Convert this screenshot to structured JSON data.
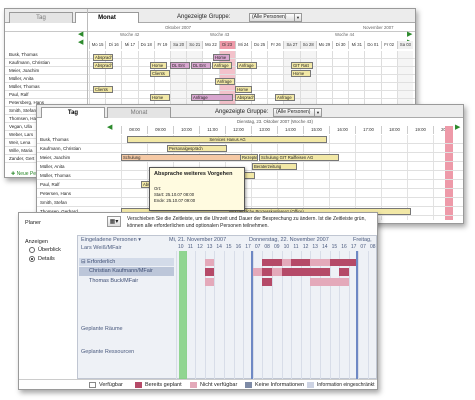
{
  "p1": {
    "tab_tag": "Tag",
    "tab_monat": "Monat",
    "group_label": "Angezeigte Gruppe:",
    "group_value": "(Alle Personen)",
    "date_left": "Oktober 2007",
    "date_right": "November 2007",
    "weeks": [
      "Woche 42",
      "Woche 43",
      "Woche 44"
    ],
    "days": [
      "Mo 15",
      "Di 16",
      "Mi 17",
      "Do 18",
      "Fr 19",
      "Sa 20",
      "So 21",
      "Mo 22",
      "Di 23",
      "Mi 24",
      "Do 25",
      "Fr 26",
      "Sa 27",
      "So 28",
      "Mo 29",
      "Di 30",
      "Mi 31",
      "Do 01",
      "Fr 02",
      "Sa 03"
    ],
    "people": [
      "Busk, Thomas",
      "Kaufmann, Christian",
      "Meier, Joachim",
      "Müller, Anita",
      "Müller, Thomas",
      "Paul, Ralf",
      "Petersberg, Hans",
      "Smith, Stefan",
      "Thomsen, Harald",
      "Vegan, Ulla",
      "Weber, Lars",
      "Weir, Lena",
      "Wille, Maria",
      "Zander, Gert"
    ],
    "events": [
      "Absprache",
      "Home",
      "Absprache",
      "DL Ent",
      "DL Ent",
      "Anfrage",
      "Home",
      "Anfrage",
      "GIT Ratt",
      "Clients",
      "Home",
      "Anfrage",
      "Clients",
      "Home",
      "Home",
      "Anfrage",
      "Absprache",
      "Anfrage"
    ],
    "new_person": "Neue Person"
  },
  "p2": {
    "tab_tag": "Tag",
    "tab_monat": "Monat",
    "group_label": "Angezeigte Gruppe:",
    "group_value": "(Alle Personen)",
    "date": "Dienstag, 23. Oktober 2007 (Woche 43)",
    "hours": [
      "08:00",
      "09:00",
      "10:00",
      "11:00",
      "12:00",
      "13:00",
      "14:00",
      "15:00",
      "16:00",
      "17:00",
      "18:00",
      "19:00",
      "20:00"
    ],
    "people": [
      "Busk, Thomas",
      "Kaufmann, Christian",
      "Meier, Joachim",
      "Müller, Anita",
      "Müller, Thomas",
      "Paul, Ralf",
      "Petersen, Hans",
      "Smith, Stefan",
      "Thomsen, Gerhard"
    ],
    "events": [
      "Services Hanus AG",
      "Personalgespräch",
      "Schulung",
      "Rezepte",
      "Schulung GIT Raiffeisen AG",
      "Beraterzeitung",
      "Kaufmann",
      "Absprache",
      "Absprache",
      "Wöchentliche Prozesskonferenz (Office)"
    ],
    "popup": {
      "title": "Absprache weiteres Vorgehen",
      "ort": "Ort:",
      "start": "Start: 25.10.07 08:00",
      "ende": "Ende: 25.10.07 09:00"
    }
  },
  "p3": {
    "planer": "Planer",
    "info": "Verschieben Sie die Zeitleiste, um die Uhrzeit und Dauer der Besprechung zu ändern. Ist die Zeitleiste grün, können alle erforderlichen und optionalen Personen teilnehmen.",
    "anzeigen": "Anzeigen",
    "ueberblick": "Überblick",
    "details": "Details",
    "col_header": "Eingeladene Personen",
    "person0": "Lars Weiß/MFair",
    "day1": "Mi, 21. November 2007",
    "day2": "Donnerstag, 22. November 2007",
    "day3": "Freitag,",
    "hours": [
      "10",
      "11",
      "12",
      "13",
      "14",
      "15",
      "16",
      "17",
      "07",
      "08",
      "09",
      "10",
      "11",
      "12",
      "13",
      "14",
      "15",
      "16",
      "17",
      "07",
      "08"
    ],
    "required": "Erforderlich",
    "req1": "Christian Kaufmann/MFair",
    "req2": "Thomas Buck/MFair",
    "rooms": "Geplante Räume",
    "resources": "Geplante Ressourcen",
    "legend": [
      "Verfügbar",
      "Bereits geplant",
      "Nicht verfügbar",
      "Keine Informationen",
      "Information eingeschränkt"
    ],
    "colors": {
      "available": "#ffffff",
      "planned": "#b54a68",
      "unavailable": "#e4a9ba",
      "noinfo": "#7d8aa6",
      "restricted": "#cdd3e3",
      "timeline": "#7fd07f"
    }
  }
}
